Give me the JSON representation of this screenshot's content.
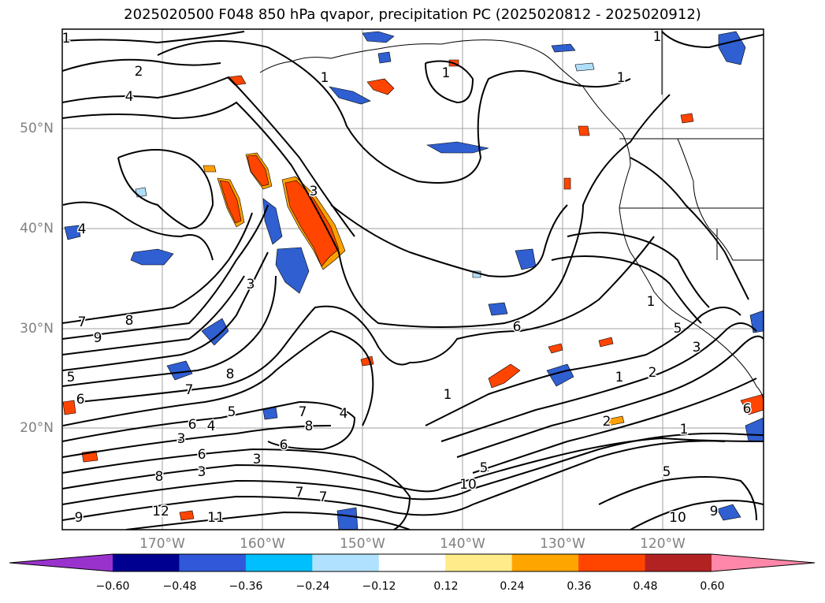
{
  "title": "2025020500 F048 850 hPa qvapor, precipitation PC (2025020812 - 2025020912)",
  "map": {
    "lat_labels": [
      "50°N",
      "40°N",
      "30°N",
      "20°N"
    ],
    "lon_labels": [
      "170°W",
      "160°W",
      "150°W",
      "140°W",
      "130°W",
      "120°W"
    ],
    "contour_labels": [
      "2",
      "4",
      "1",
      "1",
      "1",
      "1",
      "3",
      "3",
      "4",
      "7",
      "8",
      "9",
      "5",
      "6",
      "7",
      "8",
      "5",
      "6",
      "4",
      "7",
      "8",
      "3",
      "3",
      "6",
      "8",
      "3",
      "5",
      "2",
      "12",
      "11",
      "9",
      "7",
      "10",
      "6",
      "1",
      "4",
      "2",
      "5",
      "3",
      "1",
      "7",
      "10",
      "9",
      "1",
      "1",
      "5",
      "6",
      "1",
      "1",
      "6"
    ],
    "precip_colors": {
      "dark_blue": "#2f5fd0",
      "light_blue": "#b0def8",
      "orange": "#ffa000",
      "red_orange": "#ff4500",
      "yellow": "#ffef8f"
    }
  },
  "colorbar": {
    "colors": [
      "#9932cc",
      "#000090",
      "#3058d8",
      "#00bfff",
      "#b0e2ff",
      "#ffffff",
      "#ffeb8a",
      "#ffa500",
      "#ff4500",
      "#b22222",
      "#ff88aa"
    ],
    "tick_labels": [
      "−0.60",
      "−0.48",
      "−0.36",
      "−0.24",
      "−0.12",
      "0.12",
      "0.24",
      "0.36",
      "0.48",
      "0.60"
    ]
  }
}
